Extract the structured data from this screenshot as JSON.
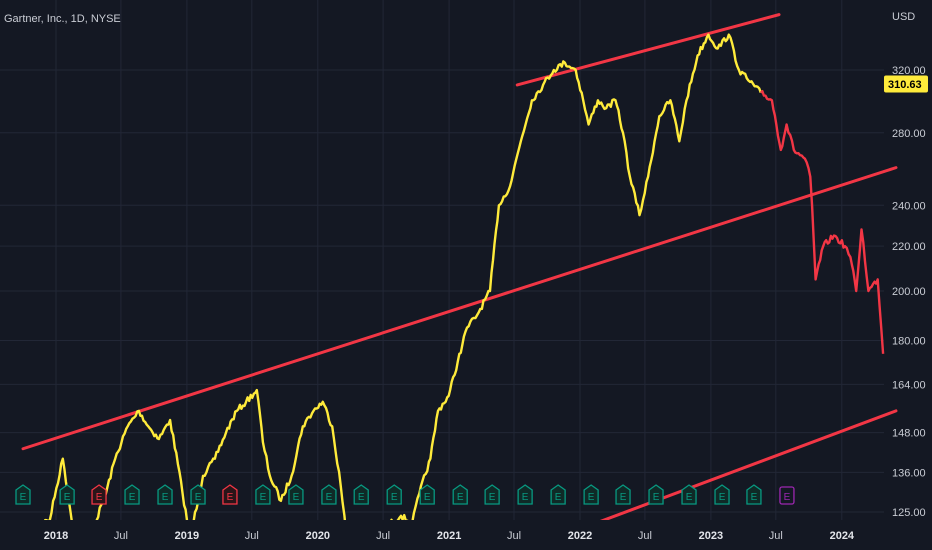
{
  "header": {
    "title": "Gartner, Inc., 1D, NYSE",
    "currency": "USD"
  },
  "last_price": {
    "label": "310.63",
    "value": 310.63,
    "color": "#ffeb3b"
  },
  "colors": {
    "background": "#141823",
    "grid": "#232837",
    "price_up": "#ffeb3b",
    "price_down": "#f23645",
    "trendline": "#f23645",
    "earnings_normal": "#089981",
    "earnings_miss": "#f23645",
    "earnings_upcoming": "#9c27b0"
  },
  "chart_data": {
    "type": "line",
    "title": "Gartner, Inc., 1D, NYSE",
    "y_axis": {
      "scale": "log",
      "currency": "USD",
      "ticks": [
        "320.00",
        "280.00",
        "240.00",
        "220.00",
        "200.00",
        "180.00",
        "164.00",
        "148.00",
        "136.00",
        "125.00"
      ],
      "tick_values": [
        320,
        280,
        240,
        220,
        200,
        180,
        164,
        148,
        136,
        125
      ]
    },
    "x_axis": {
      "ticks": [
        {
          "label": "2018",
          "date": "2018-01-01",
          "major": true
        },
        {
          "label": "Jul",
          "date": "2018-07-01",
          "major": false
        },
        {
          "label": "2019",
          "date": "2019-01-01",
          "major": true
        },
        {
          "label": "Jul",
          "date": "2019-07-01",
          "major": false
        },
        {
          "label": "2020",
          "date": "2020-01-01",
          "major": true
        },
        {
          "label": "Jul",
          "date": "2020-07-01",
          "major": false
        },
        {
          "label": "2021",
          "date": "2021-01-01",
          "major": true
        },
        {
          "label": "Jul",
          "date": "2021-07-01",
          "major": false
        },
        {
          "label": "2022",
          "date": "2022-01-01",
          "major": true
        },
        {
          "label": "Jul",
          "date": "2022-07-01",
          "major": false
        },
        {
          "label": "2023",
          "date": "2023-01-01",
          "major": true
        },
        {
          "label": "Jul",
          "date": "2023-07-01",
          "major": false
        },
        {
          "label": "2024",
          "date": "2024-01-01",
          "major": true
        }
      ]
    },
    "series": [
      {
        "color": "#ffeb3b",
        "points": [
          [
            "2017-10-01",
            120
          ],
          [
            "2017-12-15",
            123
          ],
          [
            "2018-01-20",
            140
          ],
          [
            "2018-02-15",
            122
          ],
          [
            "2018-03-20",
            120
          ],
          [
            "2018-04-20",
            122
          ],
          [
            "2018-05-20",
            130
          ],
          [
            "2018-06-15",
            140
          ],
          [
            "2018-07-20",
            150
          ],
          [
            "2018-08-20",
            155
          ],
          [
            "2018-09-15",
            150
          ],
          [
            "2018-10-15",
            146
          ],
          [
            "2018-11-15",
            152
          ],
          [
            "2018-12-20",
            130
          ],
          [
            "2019-01-10",
            118
          ],
          [
            "2019-02-15",
            135
          ],
          [
            "2019-03-20",
            140
          ],
          [
            "2019-04-20",
            148
          ],
          [
            "2019-05-20",
            155
          ],
          [
            "2019-06-15",
            158
          ],
          [
            "2019-07-15",
            162
          ],
          [
            "2019-08-01",
            145
          ],
          [
            "2019-08-20",
            135
          ],
          [
            "2019-09-20",
            128
          ],
          [
            "2019-10-20",
            135
          ],
          [
            "2019-11-20",
            150
          ],
          [
            "2019-12-20",
            155
          ],
          [
            "2020-01-15",
            158
          ],
          [
            "2020-02-10",
            150
          ],
          [
            "2020-03-05",
            132
          ],
          [
            "2020-03-25",
            115
          ],
          [
            "2020-04-20",
            118
          ],
          [
            "2020-05-20",
            122
          ],
          [
            "2020-06-20",
            120
          ],
          [
            "2020-07-20",
            122
          ],
          [
            "2020-08-20",
            124
          ],
          [
            "2020-09-20",
            122
          ],
          [
            "2020-10-10",
            130
          ],
          [
            "2020-11-10",
            140
          ],
          [
            "2020-12-01",
            155
          ],
          [
            "2020-12-31",
            160
          ],
          [
            "2021-01-25",
            172
          ],
          [
            "2021-02-20",
            185
          ],
          [
            "2021-03-20",
            190
          ],
          [
            "2021-04-25",
            200
          ],
          [
            "2021-05-20",
            240
          ],
          [
            "2021-06-20",
            250
          ],
          [
            "2021-07-20",
            275
          ],
          [
            "2021-08-20",
            300
          ],
          [
            "2021-09-20",
            310
          ],
          [
            "2021-10-20",
            320
          ],
          [
            "2021-11-20",
            325
          ],
          [
            "2021-12-20",
            320
          ],
          [
            "2022-01-10",
            300
          ],
          [
            "2022-01-25",
            285
          ],
          [
            "2022-02-20",
            300
          ],
          [
            "2022-03-15",
            295
          ],
          [
            "2022-04-10",
            300
          ],
          [
            "2022-05-01",
            280
          ],
          [
            "2022-05-20",
            255
          ],
          [
            "2022-06-16",
            235
          ],
          [
            "2022-07-10",
            255
          ],
          [
            "2022-08-10",
            290
          ],
          [
            "2022-09-10",
            300
          ],
          [
            "2022-10-05",
            275
          ],
          [
            "2022-10-25",
            300
          ],
          [
            "2022-11-25",
            330
          ],
          [
            "2022-12-25",
            345
          ],
          [
            "2023-01-20",
            335
          ],
          [
            "2023-02-20",
            345
          ],
          [
            "2023-03-20",
            320
          ],
          [
            "2023-04-20",
            312
          ],
          [
            "2023-05-20",
            305
          ]
        ]
      },
      {
        "color": "#f23645",
        "points": [
          [
            "2023-05-20",
            305
          ],
          [
            "2023-06-20",
            300
          ],
          [
            "2023-07-15",
            270
          ],
          [
            "2023-07-31",
            285
          ],
          [
            "2023-08-20",
            270
          ],
          [
            "2023-09-20",
            265
          ],
          [
            "2023-10-05",
            255
          ],
          [
            "2023-10-20",
            205
          ],
          [
            "2023-11-10",
            220
          ],
          [
            "2023-12-10",
            225
          ],
          [
            "2024-01-10",
            220
          ],
          [
            "2024-01-25",
            215
          ],
          [
            "2024-02-10",
            200
          ],
          [
            "2024-02-25",
            228
          ],
          [
            "2024-03-15",
            200
          ],
          [
            "2024-04-10",
            205
          ],
          [
            "2024-04-25",
            175
          ]
        ]
      }
    ],
    "trendlines": [
      {
        "color": "#f23645",
        "points": [
          [
            "2021-07-10",
            310
          ],
          [
            "2023-07-10",
            360
          ]
        ]
      },
      {
        "color": "#f23645",
        "points": [
          [
            "2017-10-01",
            143
          ],
          [
            "2024-05-31",
            260
          ]
        ]
      },
      {
        "color": "#f23645",
        "points": [
          [
            "2021-07-20",
            115
          ],
          [
            "2024-05-31",
            155
          ]
        ]
      }
    ],
    "earnings": [
      {
        "date": "2017-10-01",
        "label": "E",
        "type": "normal"
      },
      {
        "date": "2018-02-01",
        "label": "E",
        "type": "normal"
      },
      {
        "date": "2018-05-01",
        "label": "E",
        "type": "miss"
      },
      {
        "date": "2018-08-01",
        "label": "E",
        "type": "normal"
      },
      {
        "date": "2018-11-01",
        "label": "E",
        "type": "normal"
      },
      {
        "date": "2019-02-01",
        "label": "E",
        "type": "normal"
      },
      {
        "date": "2019-05-01",
        "label": "E",
        "type": "miss"
      },
      {
        "date": "2019-08-01",
        "label": "E",
        "type": "normal"
      },
      {
        "date": "2019-11-01",
        "label": "E",
        "type": "normal"
      },
      {
        "date": "2020-02-01",
        "label": "E",
        "type": "normal"
      },
      {
        "date": "2020-05-01",
        "label": "E",
        "type": "normal"
      },
      {
        "date": "2020-08-01",
        "label": "E",
        "type": "normal"
      },
      {
        "date": "2020-11-01",
        "label": "E",
        "type": "normal"
      },
      {
        "date": "2021-02-01",
        "label": "E",
        "type": "normal"
      },
      {
        "date": "2021-05-01",
        "label": "E",
        "type": "normal"
      },
      {
        "date": "2021-08-01",
        "label": "E",
        "type": "normal"
      },
      {
        "date": "2021-11-01",
        "label": "E",
        "type": "normal"
      },
      {
        "date": "2022-02-01",
        "label": "E",
        "type": "normal"
      },
      {
        "date": "2022-05-01",
        "label": "E",
        "type": "normal"
      },
      {
        "date": "2022-08-01",
        "label": "E",
        "type": "normal"
      },
      {
        "date": "2022-11-01",
        "label": "E",
        "type": "normal"
      },
      {
        "date": "2023-02-01",
        "label": "E",
        "type": "normal"
      },
      {
        "date": "2023-05-01",
        "label": "E",
        "type": "normal"
      },
      {
        "date": "2023-08-01",
        "label": "E",
        "type": "upcoming"
      }
    ]
  }
}
